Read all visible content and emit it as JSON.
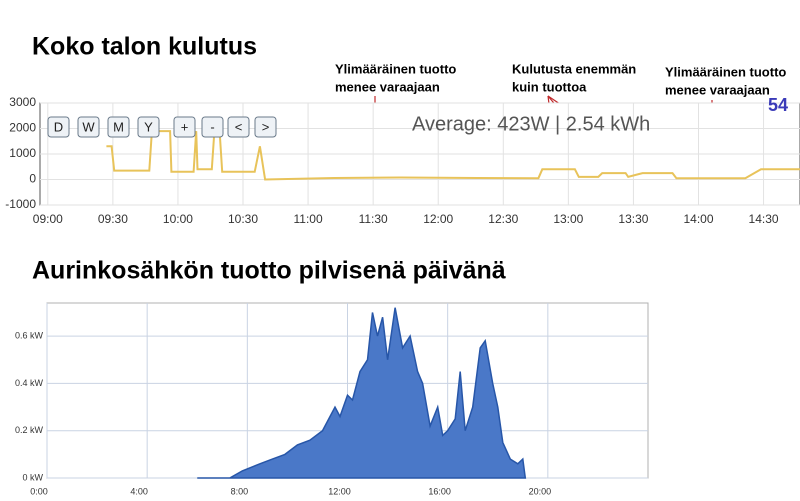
{
  "chart_data": [
    {
      "type": "line",
      "title": "Koko talon kulutus",
      "color": "#e8c35a",
      "grid": true,
      "x": [
        9.45,
        9.49,
        9.51,
        9.78,
        9.8,
        9.94,
        9.95,
        10.12,
        10.14,
        10.15,
        10.26,
        10.28,
        10.32,
        10.34,
        10.59,
        10.63,
        10.67,
        11.2,
        11.71,
        12.3,
        12.77,
        12.8,
        13.05,
        13.08,
        13.23,
        13.26,
        13.44,
        13.46,
        13.57,
        13.8,
        13.83,
        14.36,
        14.48,
        14.78
      ],
      "values": [
        1300,
        1300,
        350,
        350,
        1900,
        1900,
        300,
        300,
        1900,
        400,
        400,
        1900,
        1900,
        300,
        300,
        1300,
        0,
        60,
        80,
        60,
        50,
        400,
        400,
        100,
        100,
        250,
        250,
        100,
        250,
        250,
        50,
        50,
        400,
        400
      ],
      "xlim": [
        8.94,
        14.78
      ],
      "ylim": [
        -1000,
        3000
      ],
      "xticks": [
        {
          "value": 9,
          "label": "09:00"
        },
        {
          "value": 9.5,
          "label": "09:30"
        },
        {
          "value": 10,
          "label": "10:00"
        },
        {
          "value": 10.5,
          "label": "10:30"
        },
        {
          "value": 11,
          "label": "11:00"
        },
        {
          "value": 11.5,
          "label": "11:30"
        },
        {
          "value": 12,
          "label": "12:00"
        },
        {
          "value": 12.5,
          "label": "12:30"
        },
        {
          "value": 13,
          "label": "13:00"
        },
        {
          "value": 13.5,
          "label": "13:30"
        },
        {
          "value": 14,
          "label": "14:00"
        },
        {
          "value": 14.5,
          "label": "14:30"
        }
      ],
      "yticks": [
        3000,
        2000,
        1000,
        0,
        -1000
      ],
      "controls": [
        "D",
        "W",
        "M",
        "Y",
        "+",
        "-",
        "<",
        ">"
      ],
      "average": "Average: 423W | 2.54 kWh",
      "corner_value": "54",
      "annotations": [
        [
          "Ylimääräinen tuotto",
          "menee varaajaan"
        ],
        [
          "Kulutusta enemmän",
          "kuin tuottoa"
        ],
        [
          "Ylimääräinen tuotto",
          "menee varaajaan"
        ]
      ]
    },
    {
      "type": "area",
      "title": "Aurinkosähkön tuotto pilvisenä päivänä",
      "color": "#4a78c8",
      "grid": true,
      "x": [
        6.0,
        7.3,
        7.8,
        8.5,
        9.0,
        9.5,
        10.0,
        10.5,
        11.0,
        11.5,
        11.7,
        12.0,
        12.2,
        12.5,
        12.8,
        13.0,
        13.2,
        13.4,
        13.6,
        13.9,
        14.2,
        14.5,
        14.8,
        15.0,
        15.3,
        15.6,
        15.8,
        16.0,
        16.3,
        16.5,
        16.7,
        17.0,
        17.3,
        17.5,
        17.8,
        18.0,
        18.2,
        18.5,
        18.8,
        19.0,
        19.1
      ],
      "values": [
        0,
        0,
        0.03,
        0.06,
        0.08,
        0.1,
        0.14,
        0.16,
        0.2,
        0.3,
        0.26,
        0.35,
        0.33,
        0.45,
        0.5,
        0.7,
        0.6,
        0.68,
        0.5,
        0.72,
        0.55,
        0.6,
        0.45,
        0.4,
        0.22,
        0.3,
        0.18,
        0.2,
        0.25,
        0.45,
        0.2,
        0.3,
        0.55,
        0.58,
        0.4,
        0.3,
        0.15,
        0.08,
        0.06,
        0.08,
        0
      ],
      "xlim": [
        0,
        24
      ],
      "ylim": [
        0,
        0.74
      ],
      "xticks": [
        {
          "value": 0,
          "label": "0:00"
        },
        {
          "value": 4,
          "label": "4:00"
        },
        {
          "value": 8,
          "label": "8:00"
        },
        {
          "value": 12,
          "label": "12:00"
        },
        {
          "value": 16,
          "label": "16:00"
        },
        {
          "value": 20,
          "label": "20:00"
        }
      ],
      "yticks": [
        {
          "value": 0,
          "label": "0 kW"
        },
        {
          "value": 0.2,
          "label": "0.2 kW"
        },
        {
          "value": 0.4,
          "label": "0.4 kW"
        },
        {
          "value": 0.6,
          "label": "0.6 kW"
        }
      ]
    }
  ]
}
